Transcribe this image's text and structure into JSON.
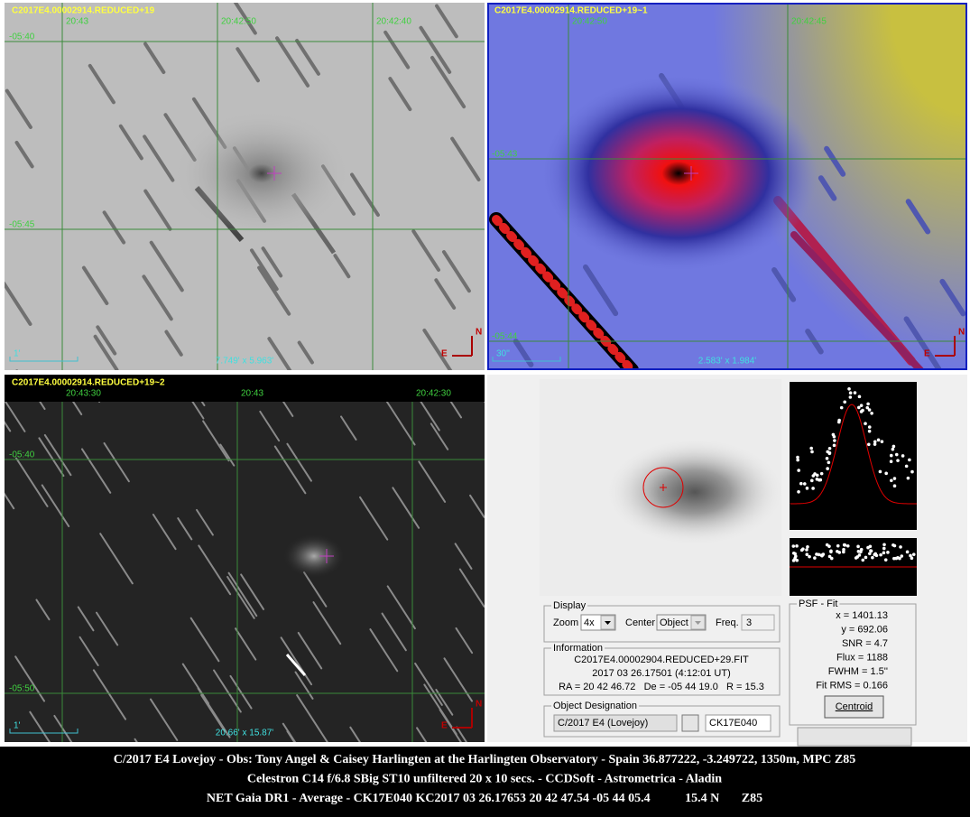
{
  "panels": [
    {
      "title": "C2017E4.00002914.REDUCED+19",
      "ra_labels": [
        "20:43",
        "20:42:50",
        "20:42:40"
      ],
      "dec_labels": [
        "-05:40",
        "-05:45"
      ],
      "scale": "1'",
      "field": "7.749' x 5.963'",
      "compass": {
        "east": "E",
        "north": "N"
      }
    },
    {
      "title": "C2017E4.00002914.REDUCED+19~1",
      "ra_labels": [
        "20:42:50",
        "20:42:45"
      ],
      "dec_labels": [
        "-05:43",
        "-05:44"
      ],
      "scale": "30''",
      "field": "2.583' x 1.984'",
      "compass": {
        "east": "E",
        "north": "N"
      }
    },
    {
      "title": "C2017E4.00002914.REDUCED+19~2",
      "ra_labels": [
        "20:43:30",
        "20:43",
        "20:42:30"
      ],
      "dec_labels": [
        "-05:40",
        "-05:50"
      ],
      "scale": "1'",
      "field": "20.66' x 15.87'",
      "compass": {
        "east": "E",
        "north": "N"
      }
    }
  ],
  "psf_window": {
    "display": {
      "title": "Display",
      "zoom_label": "Zoom",
      "zoom": "4x",
      "center_label": "Center",
      "center": "Object",
      "freq_label": "Freq.",
      "freq": "3"
    },
    "information": {
      "title": "Information",
      "file": "C2017E4.00002904.REDUCED+29.FIT",
      "time": "2017 03 26.17501 (4:12:01 UT)",
      "position": "RA = 20 42 46.72   De = -05 44 19.0   R = 15.3"
    },
    "object_designation": {
      "title": "Object Designation",
      "name": "C/2017 E4 (Lovejoy)",
      "code": "CK17E040"
    },
    "psf_fit": {
      "title": "PSF - Fit",
      "x": "x = 1401.13",
      "y": "y = 692.06",
      "snr": "SNR = 4.7",
      "flux": "Flux = 1188",
      "fwhm": "FWHM = 1.5''",
      "rms": "Fit RMS = 0.166",
      "button": "Centroid"
    }
  },
  "caption": [
    "C/2017 E4 Lovejoy - Obs: Tony Angel & Caisey Harlingten at the Harlingten Observatory - Spain 36.877222, -3.249722, 1350m, MPC Z85",
    "Celestron C14 f/6.8 SBig ST10 unfiltered 20 x 10 secs. - CCDSoft - Astrometrica - Aladin",
    "NET Gaia DR1 - Average - CK17E040 KC2017 03 26.17653 20 42 47.54 -05 44 05.4           15.4 N       Z85"
  ]
}
